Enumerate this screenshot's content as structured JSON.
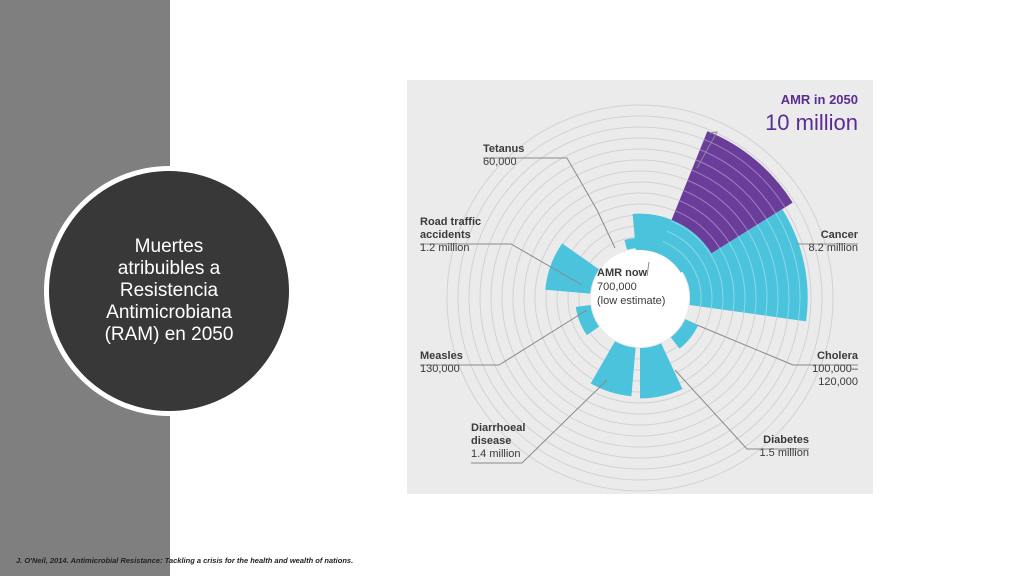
{
  "slide": {
    "title": "Muertes\natribuibles a\nResistencia\nAntimicrobiana\n(RAM) en 2050",
    "citation": "J. O'Neil, 2014. Antimicrobial Resistance: Tackling a crisis for the health and wealth of nations.",
    "colors": {
      "sidebar": "#7f7f7f",
      "title_circle": "#383838",
      "chart_background": "#ebebeb",
      "amr_purple": "#6b3d9a",
      "other_cyan": "#4bc3dc",
      "text_dark": "#3a3a3a",
      "accent_label": "#5c2d91"
    }
  },
  "chart_data": {
    "type": "polar-area",
    "center_label": {
      "title": "AMR now",
      "value": "700,000",
      "note": "(low estimate)"
    },
    "headline": {
      "title": "AMR in 2050",
      "value": "10 million"
    },
    "segments": [
      {
        "name": "AMR in 2050",
        "value": 10000000,
        "color": "#6b3d9a"
      },
      {
        "name": "Cancer",
        "value": 8200000,
        "value_label": "8.2 million",
        "color": "#4bc3dc"
      },
      {
        "name": "Cholera",
        "value": 120000,
        "value_label": "100,000–\n120,000",
        "color": "#4bc3dc"
      },
      {
        "name": "Diabetes",
        "value": 1500000,
        "value_label": "1.5 million",
        "color": "#4bc3dc"
      },
      {
        "name": "Diarrhoeal\ndisease",
        "value": 1400000,
        "value_label": "1.4 million",
        "color": "#4bc3dc"
      },
      {
        "name": "Measles",
        "value": 130000,
        "value_label": "130,000",
        "color": "#4bc3dc"
      },
      {
        "name": "Road traffic\naccidents",
        "value": 1200000,
        "value_label": "1.2 million",
        "color": "#4bc3dc"
      },
      {
        "name": "Tetanus",
        "value": 60000,
        "value_label": "60,000",
        "color": "#4bc3dc"
      },
      {
        "name": "AMR now",
        "value": 700000,
        "color": "#4bc3dc"
      }
    ],
    "grid": true
  }
}
